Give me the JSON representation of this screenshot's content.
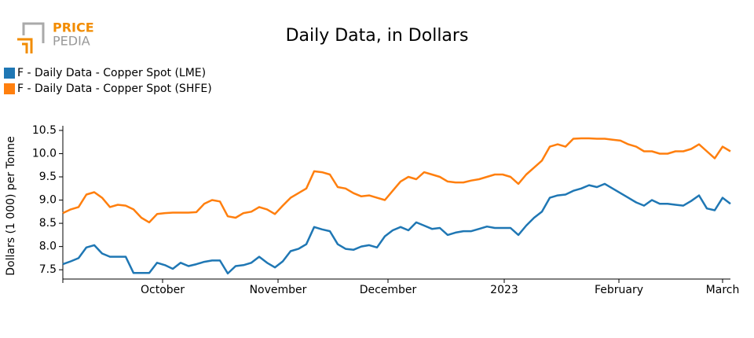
{
  "logo": {
    "top": "PRICE",
    "bottom": "PEDIA"
  },
  "chart_data": {
    "type": "line",
    "title": "Daily Data, in Dollars",
    "ylabel": "Dollars (1 000) per Tonne",
    "categories": [
      null,
      null,
      null,
      null,
      null,
      null,
      null,
      null,
      null,
      null,
      null,
      null,
      null,
      null,
      null,
      null,
      null,
      null,
      null,
      null,
      null,
      null,
      null,
      null,
      null,
      null,
      null,
      null,
      null,
      null,
      null,
      null,
      null,
      null,
      null,
      null,
      null,
      null,
      null,
      null,
      null,
      null,
      null,
      null,
      null,
      null,
      null,
      null,
      null,
      null,
      null,
      null,
      null,
      null,
      null,
      null,
      null,
      null,
      null,
      null,
      null,
      null,
      null,
      null,
      null,
      null,
      null,
      null,
      null,
      null,
      null,
      null,
      null,
      null,
      null,
      null,
      null,
      null,
      null,
      null,
      null,
      null,
      null,
      null,
      null,
      null
    ],
    "xlim": [
      0,
      85
    ],
    "xticks": [
      0,
      {
        "value": 12.7,
        "label": "October"
      },
      {
        "value": 27.4,
        "label": "November"
      },
      {
        "value": 41.4,
        "label": "December"
      },
      {
        "value": 56.2,
        "label": "2023"
      },
      {
        "value": 70.8,
        "label": "February"
      },
      {
        "value": 84,
        "label": "March"
      }
    ],
    "ylim": [
      7.3,
      10.6
    ],
    "yticks": [
      7.5,
      {
        "value": 8,
        "label": "8.0"
      },
      8.5,
      {
        "value": 9,
        "label": "9.0"
      },
      9.5,
      {
        "value": 10,
        "label": "10.0"
      },
      10.5
    ],
    "grid": false,
    "legend": "top-left",
    "series": [
      {
        "name": "F - Daily Data - Copper Spot (LME)",
        "color": "#1f77b4",
        "values": [
          7.62,
          7.68,
          7.75,
          7.98,
          8.03,
          7.85,
          7.78,
          7.78,
          7.78,
          7.43,
          7.43,
          7.43,
          7.65,
          7.6,
          7.52,
          7.65,
          7.58,
          7.62,
          7.67,
          7.7,
          7.7,
          7.42,
          7.58,
          7.6,
          7.65,
          7.78,
          7.65,
          7.55,
          7.68,
          7.9,
          7.95,
          8.05,
          8.42,
          8.37,
          8.33,
          8.05,
          7.95,
          7.93,
          8.0,
          8.03,
          7.98,
          8.22,
          8.35,
          8.42,
          8.35,
          8.52,
          8.45,
          8.38,
          8.4,
          8.25,
          8.3,
          8.33,
          8.33,
          8.38,
          8.43,
          8.4,
          8.4,
          8.4,
          8.25,
          8.45,
          8.62,
          8.75,
          9.05,
          9.1,
          9.12,
          9.2,
          9.25,
          9.32,
          9.28,
          9.35,
          9.25,
          9.15,
          9.05,
          8.95,
          8.88,
          9.0,
          8.92,
          8.92,
          8.9,
          8.88,
          8.98,
          9.1,
          8.82,
          8.78,
          9.05,
          8.92
        ]
      },
      {
        "name": "F - Daily Data - Copper Spot (SHFE)",
        "color": "#ff7f0e",
        "values": [
          8.72,
          8.8,
          8.85,
          9.12,
          9.17,
          9.05,
          8.85,
          8.9,
          8.88,
          8.8,
          8.62,
          8.52,
          8.7,
          8.72,
          8.73,
          8.73,
          8.73,
          8.74,
          8.92,
          9.0,
          8.97,
          8.65,
          8.62,
          8.72,
          8.75,
          8.85,
          8.8,
          8.7,
          8.88,
          9.05,
          9.15,
          9.25,
          9.62,
          9.6,
          9.55,
          9.28,
          9.25,
          9.15,
          9.08,
          9.1,
          9.05,
          9.0,
          9.2,
          9.4,
          9.5,
          9.45,
          9.6,
          9.55,
          9.5,
          9.4,
          9.38,
          9.38,
          9.42,
          9.45,
          9.5,
          9.55,
          9.55,
          9.5,
          9.35,
          9.55,
          9.7,
          9.85,
          10.15,
          10.2,
          10.15,
          10.32,
          10.33,
          10.33,
          10.32,
          10.32,
          10.3,
          10.28,
          10.2,
          10.15,
          10.05,
          10.05,
          10.0,
          10.0,
          10.05,
          10.05,
          10.1,
          10.2,
          10.05,
          9.9,
          10.15,
          10.05
        ]
      }
    ]
  }
}
